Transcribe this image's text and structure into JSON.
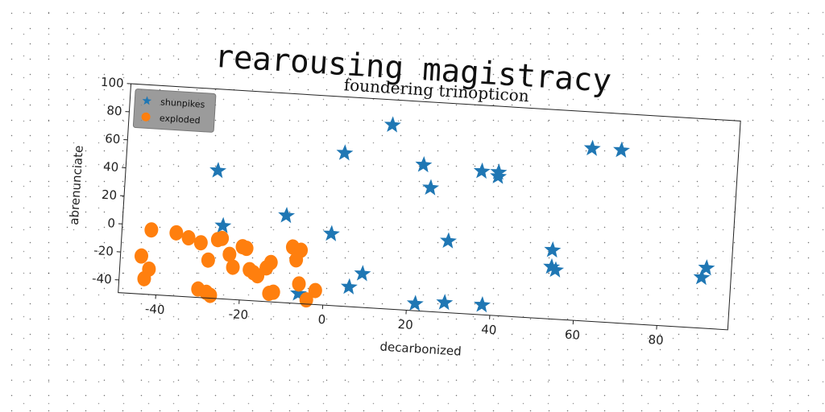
{
  "page_title": "rearousing magistracy",
  "chart_data": {
    "type": "scatter",
    "title": "foundering trinopticon",
    "xlabel": "decarbonized",
    "ylabel": "abrenunciate",
    "xlim": [
      -49,
      97
    ],
    "ylim": [
      -49,
      100
    ],
    "xticks": [
      -40,
      -20,
      0,
      20,
      40,
      60,
      80
    ],
    "yticks": [
      -40,
      -20,
      0,
      20,
      40,
      60,
      80,
      100
    ],
    "grid": false,
    "legend_position": "top-left",
    "series": [
      {
        "name": "shunpikes",
        "marker": "star",
        "color": "#1f77b4",
        "points": [
          [
            -27,
            42
          ],
          [
            -25,
            3
          ],
          [
            -10,
            13
          ],
          [
            3,
            60
          ],
          [
            14,
            82
          ],
          [
            1,
            2
          ],
          [
            -6,
            -42
          ],
          [
            6,
            -35
          ],
          [
            9,
            -25
          ],
          [
            22,
            55
          ],
          [
            24,
            39
          ],
          [
            29,
            2
          ],
          [
            22,
            -44
          ],
          [
            29,
            -42
          ],
          [
            36,
            53
          ],
          [
            40,
            53
          ],
          [
            40,
            50
          ],
          [
            38,
            -42
          ],
          [
            54,
            0
          ],
          [
            54,
            -12
          ],
          [
            55,
            -14
          ],
          [
            62,
            74
          ],
          [
            69,
            74
          ],
          [
            90,
            -13
          ],
          [
            91,
            -6
          ]
        ]
      },
      {
        "name": "exploded",
        "marker": "circle",
        "color": "#ff7f0e",
        "points": [
          [
            -42,
            -3
          ],
          [
            -44,
            -22
          ],
          [
            -42,
            -31
          ],
          [
            -43,
            -38
          ],
          [
            -36,
            -4
          ],
          [
            -33,
            -7
          ],
          [
            -30,
            -10
          ],
          [
            -25,
            -6
          ],
          [
            -26,
            -7
          ],
          [
            -28,
            -22
          ],
          [
            -23,
            -17
          ],
          [
            -22,
            -26
          ],
          [
            -20,
            -11
          ],
          [
            -19,
            -12
          ],
          [
            -18,
            -27
          ],
          [
            -17,
            -29
          ],
          [
            -16,
            -31
          ],
          [
            -14,
            -25
          ],
          [
            -13,
            -21
          ],
          [
            -8,
            -9
          ],
          [
            -6,
            -11
          ],
          [
            -7,
            -18
          ],
          [
            -30,
            -43
          ],
          [
            -28,
            -45
          ],
          [
            -27,
            -47
          ],
          [
            -13,
            -43
          ],
          [
            -12,
            -42
          ],
          [
            -6,
            -35
          ],
          [
            -4,
            -46
          ],
          [
            -2,
            -39
          ]
        ]
      }
    ]
  }
}
